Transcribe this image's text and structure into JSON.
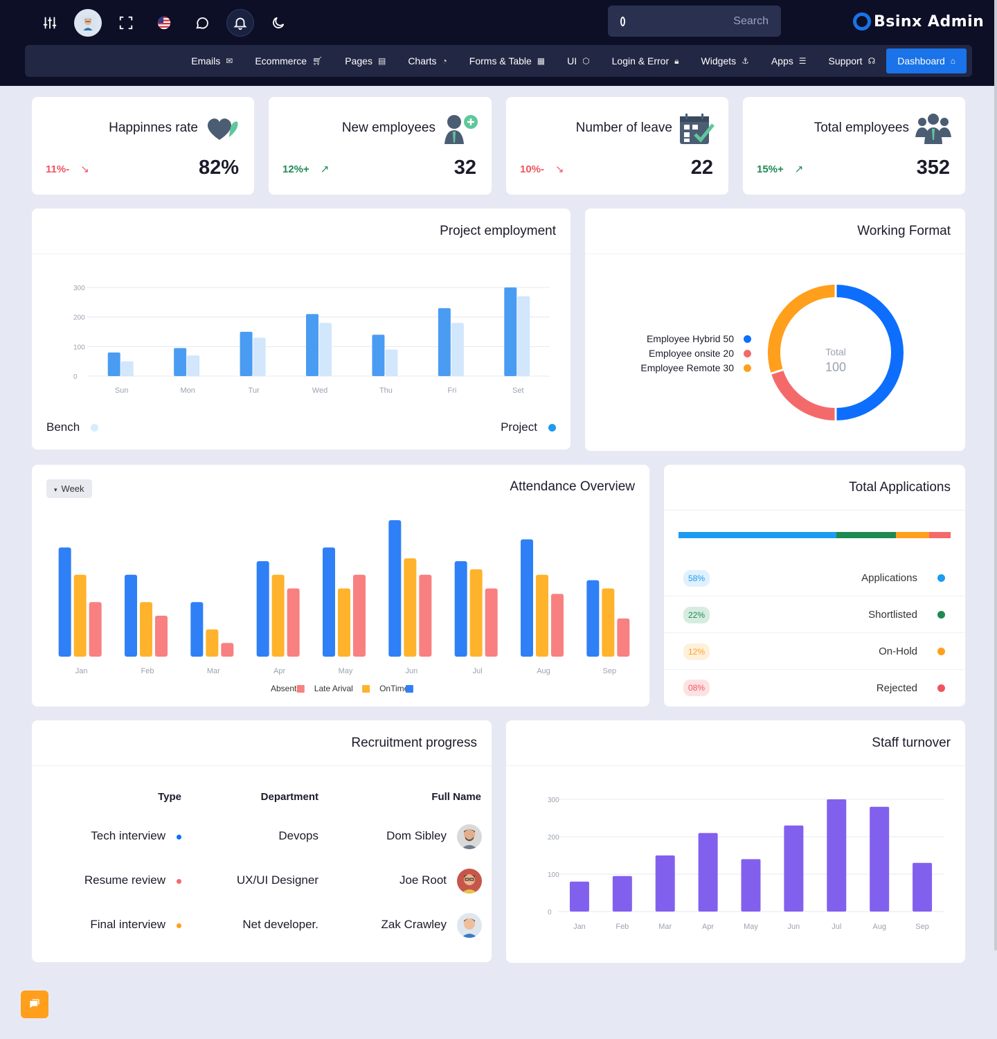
{
  "search": {
    "placeholder": "Search"
  },
  "brand": {
    "name": "Bsinx Admin"
  },
  "nav": [
    {
      "label": "Emails",
      "icon": "mail-icon"
    },
    {
      "label": "Ecommerce",
      "icon": "cart-icon"
    },
    {
      "label": "Pages",
      "icon": "file-icon"
    },
    {
      "label": "Charts",
      "icon": "pie-chart-icon"
    },
    {
      "label": "Forms & Table",
      "icon": "table-icon"
    },
    {
      "label": "UI",
      "icon": "cube-icon"
    },
    {
      "label": "Login & Error",
      "icon": "lock-icon"
    },
    {
      "label": "Widgets",
      "icon": "anchor-icon"
    },
    {
      "label": "Apps",
      "icon": "database-icon"
    },
    {
      "label": "Support",
      "icon": "headphones-icon"
    },
    {
      "label": "Dashboard",
      "icon": "home-icon"
    }
  ],
  "kpis": [
    {
      "title": "Happinnes rate",
      "trend": "11%-",
      "value": "82%",
      "direction": "down",
      "color": "#f0545f"
    },
    {
      "title": "New employees",
      "trend": "12%+",
      "value": "32",
      "direction": "up",
      "color": "#1e8a52"
    },
    {
      "title": "Number of leave",
      "trend": "10%-",
      "value": "22",
      "direction": "down",
      "color": "#f0545f"
    },
    {
      "title": "Total employees",
      "trend": "15%+",
      "value": "352",
      "direction": "up",
      "color": "#1e8a52"
    }
  ],
  "project_employment": {
    "title": "Project employment",
    "legend": {
      "bench": "Bench",
      "project": "Project"
    }
  },
  "working_format": {
    "title": "Working Format",
    "center_label": "Total",
    "center_value": "100",
    "legend": [
      {
        "label": "Employee Hybrid 50",
        "color": "#0d6efd"
      },
      {
        "label": "Employee onsite 20",
        "color": "#f46a6a"
      },
      {
        "label": "Employee Remote 30",
        "color": "#ff9f1c"
      }
    ]
  },
  "attendance": {
    "title": "Attendance Overview",
    "filter": "Week"
  },
  "total_applications": {
    "title": "Total Applications",
    "rows": [
      {
        "pct": "58%",
        "label": "Applications",
        "color": "#1d9bf0",
        "bg": "#dff1fd"
      },
      {
        "pct": "22%",
        "label": "Shortlisted",
        "color": "#1e8a52",
        "bg": "#d6ece0"
      },
      {
        "pct": "12%",
        "label": "On-Hold",
        "color": "#ff9f1c",
        "bg": "#fff0dc"
      },
      {
        "pct": "08%",
        "label": "Rejected",
        "color": "#f0545f",
        "bg": "#fde2e4"
      }
    ]
  },
  "recruitment": {
    "title": "Recruitment progress",
    "headers": {
      "type": "Type",
      "department": "Department",
      "name": "Full Name"
    },
    "rows": [
      {
        "type": "Tech interview",
        "department": "Devops",
        "name": "Dom Sibley",
        "color": "#0d6efd"
      },
      {
        "type": "Resume review",
        "department": "UX/UI Designer",
        "name": "Joe Root",
        "color": "#f46a6a"
      },
      {
        "type": "Final interview",
        "department": "Net developer.",
        "name": "Zak Crawley",
        "color": "#ff9f1c"
      }
    ]
  },
  "staff_turnover": {
    "title": "Staff turnover"
  },
  "chart_data": [
    {
      "type": "bar",
      "categories": [
        "Sun",
        "Mon",
        "Tur",
        "Wed",
        "Thu",
        "Fri",
        "Set"
      ],
      "series": [
        {
          "name": "Project",
          "values": [
            80,
            95,
            150,
            210,
            140,
            230,
            300
          ],
          "color": "#4a9cf2"
        },
        {
          "name": "Bench",
          "values": [
            50,
            70,
            130,
            180,
            90,
            180,
            270
          ],
          "color": "#d2e6fc"
        }
      ],
      "ylim": [
        0,
        300
      ],
      "yticks": [
        0,
        100,
        200,
        300
      ]
    },
    {
      "type": "pie",
      "categories": [
        "Employee Hybrid",
        "Employee onsite",
        "Employee Remote"
      ],
      "values": [
        50,
        20,
        30
      ],
      "colors": [
        "#0d6efd",
        "#f46a6a",
        "#ff9f1c"
      ]
    },
    {
      "type": "bar",
      "categories": [
        "Jan",
        "Feb",
        "Mar",
        "Apr",
        "May",
        "Jun",
        "Jul",
        "Aug",
        "Sep"
      ],
      "series": [
        {
          "name": "OnTime",
          "values": [
            80,
            60,
            40,
            70,
            80,
            100,
            70,
            86,
            56
          ],
          "color": "#2f80f7"
        },
        {
          "name": "Late Arival",
          "values": [
            60,
            40,
            20,
            60,
            50,
            72,
            64,
            60,
            50
          ],
          "color": "#ffb32c"
        },
        {
          "name": "Absent",
          "values": [
            40,
            30,
            10,
            50,
            60,
            60,
            50,
            46,
            28
          ],
          "color": "#f98080"
        }
      ],
      "ylim": [
        0,
        100
      ]
    },
    {
      "type": "bar",
      "categories": [
        "Jan",
        "Feb",
        "Mar",
        "Apr",
        "May",
        "Jun",
        "Jul",
        "Aug",
        "Sep"
      ],
      "values": [
        80,
        95,
        150,
        210,
        140,
        230,
        300,
        280,
        130
      ],
      "color": "#8260ee",
      "ylim": [
        0,
        300
      ],
      "yticks": [
        0,
        100,
        200,
        300
      ]
    }
  ]
}
